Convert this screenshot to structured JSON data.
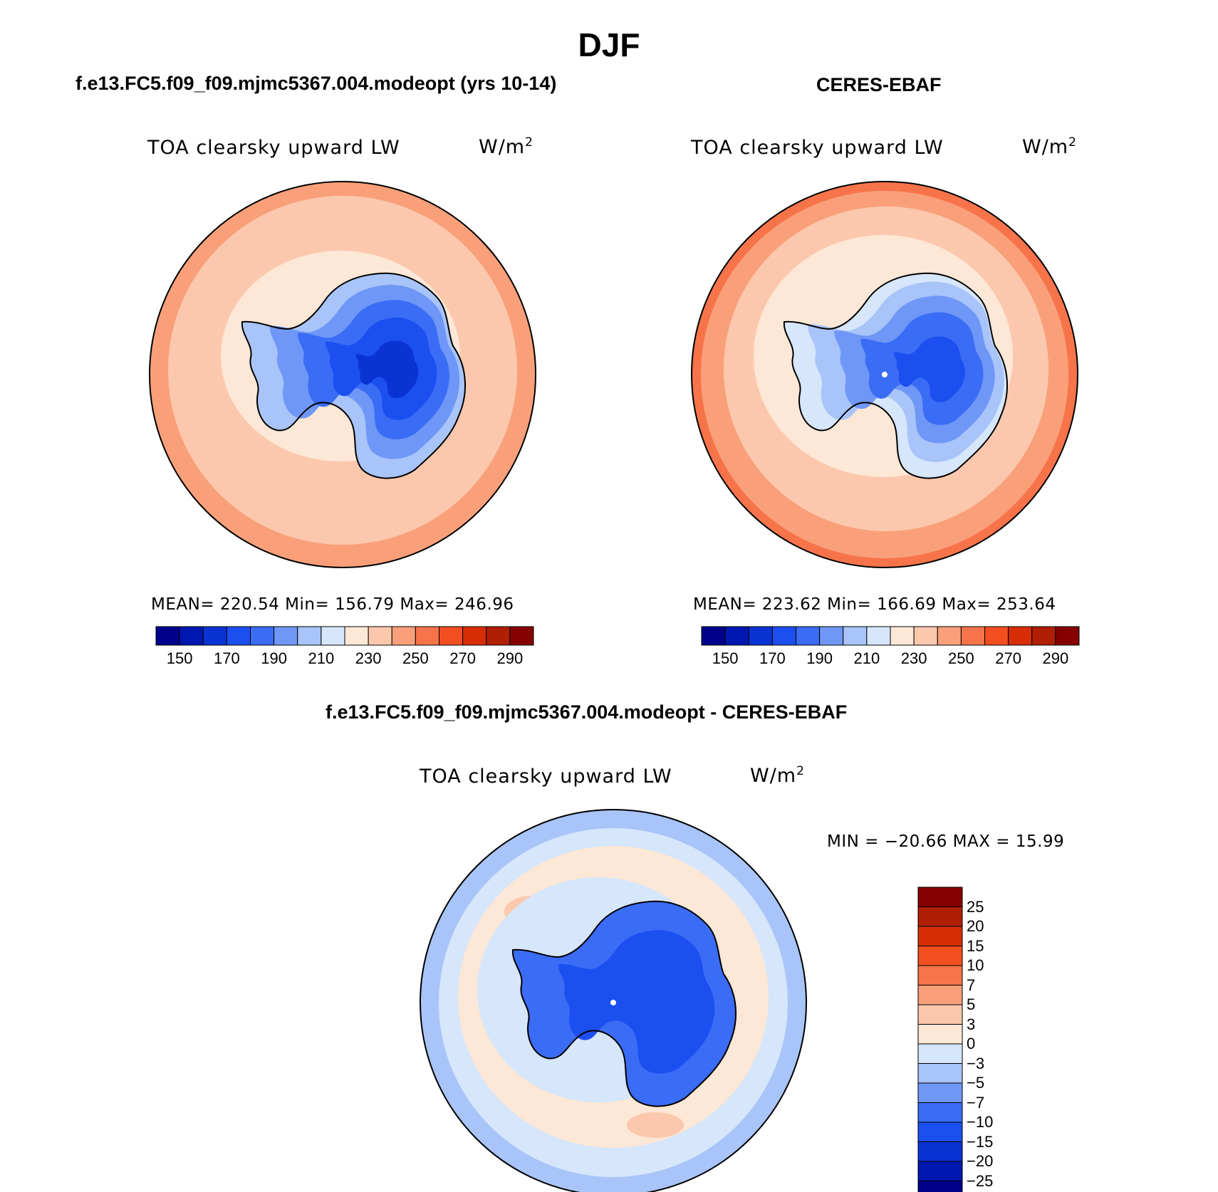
{
  "figure": {
    "title": "DJF"
  },
  "panels": {
    "model": {
      "title": "f.e13.FC5.f09_f09.mjmc5367.004.modeopt (yrs 10-14)",
      "variable": "TOA clearsky upward LW",
      "units_base": "W/m",
      "units_exp": "2",
      "stats": "MEAN= 220.54   Min= 156.79   Max= 246.96"
    },
    "obs": {
      "title": "CERES-EBAF",
      "variable": "TOA clearsky upward LW",
      "units_base": "W/m",
      "units_exp": "2",
      "stats": "MEAN= 223.62   Min= 166.69   Max= 253.64"
    },
    "diff": {
      "title": "f.e13.FC5.f09_f09.mjmc5367.004.modeopt - CERES-EBAF",
      "variable": "TOA clearsky upward LW",
      "units_base": "W/m",
      "units_exp": "2",
      "stats": "MIN = −20.66  MAX =   15.99"
    }
  },
  "colorbars": {
    "abs": {
      "colors": [
        "#00008b",
        "#0018b0",
        "#0a33d4",
        "#1c4ff0",
        "#3a6cf5",
        "#6f97f7",
        "#a8c4f9",
        "#d6e6fb",
        "#fde7d6",
        "#fcc8ad",
        "#f9a07a",
        "#f7744a",
        "#f24e20",
        "#d82e07",
        "#b01e04",
        "#850000"
      ],
      "ticks": [
        "150",
        "170",
        "190",
        "210",
        "230",
        "250",
        "270",
        "290"
      ]
    },
    "diff": {
      "colors": [
        "#850000",
        "#b01e04",
        "#d82e07",
        "#f24e20",
        "#f7744a",
        "#f9a07a",
        "#fcc8ad",
        "#fde7d6",
        "#d6e6fb",
        "#a8c4f9",
        "#6f97f7",
        "#3a6cf5",
        "#1c4ff0",
        "#0a33d4",
        "#0018b0",
        "#00008b"
      ],
      "ticks": [
        "25",
        "20",
        "15",
        "10",
        "7",
        "5",
        "3",
        "0",
        "−3",
        "−5",
        "−7",
        "−10",
        "−15",
        "−20",
        "−25"
      ]
    }
  }
}
